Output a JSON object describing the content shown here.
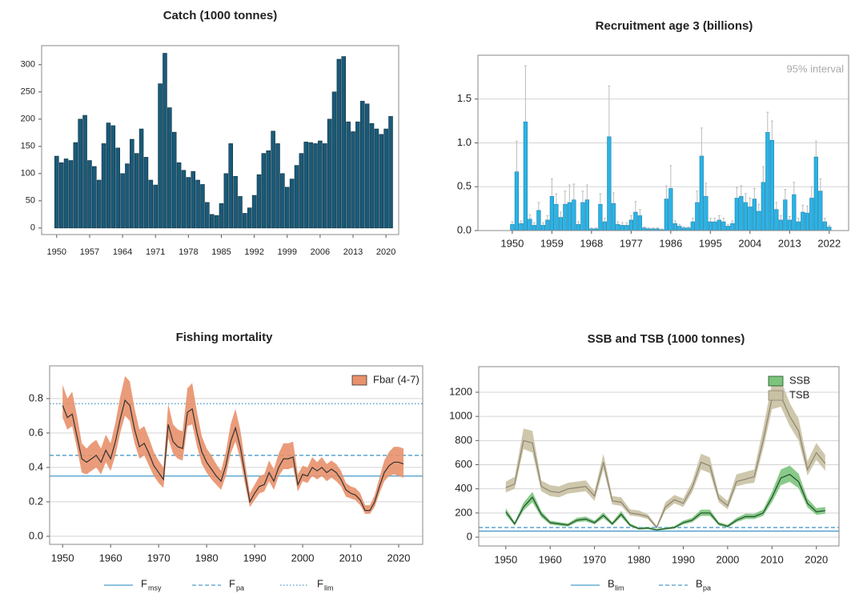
{
  "chart_data": [
    {
      "type": "bar",
      "title": "Catch (1000 tonnes)",
      "color": "#1a5a78",
      "edge_color": "#0d2f40",
      "x": [
        1950,
        1951,
        1952,
        1953,
        1954,
        1955,
        1956,
        1957,
        1958,
        1959,
        1960,
        1961,
        1962,
        1963,
        1964,
        1965,
        1966,
        1967,
        1968,
        1969,
        1970,
        1971,
        1972,
        1973,
        1974,
        1975,
        1976,
        1977,
        1978,
        1979,
        1980,
        1981,
        1982,
        1983,
        1984,
        1985,
        1986,
        1987,
        1988,
        1989,
        1990,
        1991,
        1992,
        1993,
        1994,
        1995,
        1996,
        1997,
        1998,
        1999,
        2000,
        2001,
        2002,
        2003,
        2004,
        2005,
        2006,
        2007,
        2008,
        2009,
        2010,
        2011,
        2012,
        2013,
        2014,
        2015,
        2016,
        2017,
        2018,
        2019,
        2020,
        2021
      ],
      "values": [
        132,
        120,
        127,
        124,
        157,
        200,
        207,
        124,
        113,
        88,
        155,
        193,
        188,
        147,
        100,
        118,
        163,
        137,
        182,
        130,
        88,
        79,
        265,
        321,
        221,
        176,
        120,
        106,
        93,
        104,
        88,
        80,
        47,
        25,
        23,
        45,
        100,
        155,
        95,
        58,
        27,
        37,
        60,
        98,
        137,
        142,
        178,
        155,
        100,
        75,
        90,
        115,
        137,
        158,
        157,
        155,
        160,
        155,
        200,
        250,
        310,
        315,
        195,
        177,
        195,
        233,
        228,
        192,
        182,
        172,
        182,
        205
      ],
      "xlim": [
        1946.8,
        2022.7
      ],
      "xticks": [
        1950,
        1957,
        1964,
        1971,
        1978,
        1985,
        1992,
        1999,
        2006,
        2013,
        2020
      ],
      "ylim": [
        -12,
        335
      ],
      "yticks": [
        0,
        50,
        100,
        150,
        200,
        250,
        300
      ],
      "grid": false
    },
    {
      "type": "bar",
      "title": "Recruitment age 3 (billions)",
      "annotation": "95% interval",
      "color": "#2bb3e6",
      "edge_color": "#1a7fa8",
      "error_color": "#bbbbbb",
      "x": [
        1950,
        1951,
        1952,
        1953,
        1954,
        1955,
        1956,
        1957,
        1958,
        1959,
        1960,
        1961,
        1962,
        1963,
        1964,
        1965,
        1966,
        1967,
        1968,
        1969,
        1970,
        1971,
        1972,
        1973,
        1974,
        1975,
        1976,
        1977,
        1978,
        1979,
        1980,
        1981,
        1982,
        1983,
        1984,
        1985,
        1986,
        1987,
        1988,
        1989,
        1990,
        1991,
        1992,
        1993,
        1994,
        1995,
        1996,
        1997,
        1998,
        1999,
        2000,
        2001,
        2002,
        2003,
        2004,
        2005,
        2006,
        2007,
        2008,
        2009,
        2010,
        2011,
        2012,
        2013,
        2014,
        2015,
        2016,
        2017,
        2018,
        2019,
        2020,
        2021,
        2022
      ],
      "values": [
        0.07,
        0.67,
        0.08,
        1.24,
        0.13,
        0.06,
        0.23,
        0.06,
        0.12,
        0.39,
        0.3,
        0.15,
        0.3,
        0.32,
        0.35,
        0.07,
        0.32,
        0.35,
        0.02,
        0.02,
        0.3,
        0.1,
        1.07,
        0.31,
        0.07,
        0.06,
        0.06,
        0.12,
        0.21,
        0.17,
        0.03,
        0.02,
        0.02,
        0.02,
        0.01,
        0.36,
        0.48,
        0.08,
        0.05,
        0.03,
        0.03,
        0.1,
        0.32,
        0.85,
        0.39,
        0.1,
        0.1,
        0.12,
        0.1,
        0.05,
        0.08,
        0.37,
        0.39,
        0.32,
        0.27,
        0.36,
        0.22,
        0.55,
        1.12,
        1.03,
        0.24,
        0.12,
        0.35,
        0.12,
        0.41,
        0.1,
        0.21,
        0.2,
        0.37,
        0.84,
        0.45,
        0.1,
        0.04
      ],
      "errors": [
        0.03,
        0.35,
        0.03,
        0.64,
        0.05,
        0.03,
        0.09,
        0.03,
        0.05,
        0.2,
        0.12,
        0.06,
        0.15,
        0.2,
        0.18,
        0.03,
        0.13,
        0.17,
        0.01,
        0.01,
        0.12,
        0.04,
        0.58,
        0.12,
        0.03,
        0.03,
        0.03,
        0.05,
        0.12,
        0.07,
        0.01,
        0.01,
        0.01,
        0.01,
        0.01,
        0.15,
        0.26,
        0.03,
        0.02,
        0.01,
        0.01,
        0.04,
        0.13,
        0.32,
        0.15,
        0.04,
        0.04,
        0.05,
        0.04,
        0.02,
        0.03,
        0.12,
        0.12,
        0.1,
        0.1,
        0.12,
        0.08,
        0.18,
        0.23,
        0.22,
        0.08,
        0.05,
        0.12,
        0.04,
        0.14,
        0.04,
        0.08,
        0.08,
        0.13,
        0.18,
        0.14,
        0.04,
        0.02
      ],
      "xlim": [
        1942.2,
        2026.4
      ],
      "xticks": [
        1950,
        1959,
        1968,
        1977,
        1986,
        1995,
        2004,
        2013,
        2022
      ],
      "ylim": [
        0,
        2.0
      ],
      "yticks": [
        {
          "value": 0,
          "label": "0.0"
        },
        {
          "value": 0.5,
          "label": "0.5"
        },
        {
          "value": 1,
          "label": "1.0"
        },
        {
          "value": 1.5,
          "label": "1.5"
        }
      ],
      "grid": true
    },
    {
      "type": "line",
      "title": "Fishing mortality",
      "legend": "upper-right",
      "x": [
        1950,
        1951,
        1952,
        1953,
        1954,
        1955,
        1956,
        1957,
        1958,
        1959,
        1960,
        1961,
        1962,
        1963,
        1964,
        1965,
        1966,
        1967,
        1968,
        1969,
        1970,
        1971,
        1972,
        1973,
        1974,
        1975,
        1976,
        1977,
        1978,
        1979,
        1980,
        1981,
        1982,
        1983,
        1984,
        1985,
        1986,
        1987,
        1988,
        1989,
        1990,
        1991,
        1992,
        1993,
        1994,
        1995,
        1996,
        1997,
        1998,
        1999,
        2000,
        2001,
        2002,
        2003,
        2004,
        2005,
        2006,
        2007,
        2008,
        2009,
        2010,
        2011,
        2012,
        2013,
        2014,
        2015,
        2016,
        2017,
        2018,
        2019,
        2020,
        2021
      ],
      "series": [
        {
          "name": "Fbar (4-7)",
          "color": "#e8916b",
          "line_color": "#333333",
          "values": [
            0.76,
            0.69,
            0.71,
            0.58,
            0.45,
            0.43,
            0.45,
            0.47,
            0.43,
            0.5,
            0.45,
            0.55,
            0.68,
            0.79,
            0.76,
            0.62,
            0.52,
            0.54,
            0.48,
            0.41,
            0.37,
            0.33,
            0.65,
            0.55,
            0.52,
            0.51,
            0.72,
            0.74,
            0.6,
            0.49,
            0.43,
            0.39,
            0.35,
            0.32,
            0.41,
            0.55,
            0.63,
            0.52,
            0.36,
            0.2,
            0.25,
            0.29,
            0.3,
            0.37,
            0.32,
            0.4,
            0.45,
            0.45,
            0.46,
            0.3,
            0.36,
            0.35,
            0.4,
            0.38,
            0.4,
            0.37,
            0.39,
            0.37,
            0.33,
            0.27,
            0.25,
            0.24,
            0.21,
            0.15,
            0.15,
            0.2,
            0.29,
            0.37,
            0.41,
            0.43,
            0.43,
            0.42
          ],
          "low": [
            0.69,
            0.62,
            0.64,
            0.51,
            0.37,
            0.36,
            0.38,
            0.4,
            0.36,
            0.43,
            0.38,
            0.47,
            0.6,
            0.7,
            0.67,
            0.54,
            0.45,
            0.47,
            0.41,
            0.35,
            0.31,
            0.28,
            0.57,
            0.48,
            0.45,
            0.44,
            0.64,
            0.65,
            0.52,
            0.42,
            0.37,
            0.33,
            0.3,
            0.27,
            0.35,
            0.48,
            0.55,
            0.45,
            0.3,
            0.17,
            0.21,
            0.25,
            0.26,
            0.32,
            0.27,
            0.35,
            0.39,
            0.39,
            0.4,
            0.26,
            0.32,
            0.31,
            0.35,
            0.33,
            0.35,
            0.32,
            0.34,
            0.32,
            0.29,
            0.23,
            0.22,
            0.21,
            0.18,
            0.13,
            0.13,
            0.17,
            0.25,
            0.32,
            0.35,
            0.36,
            0.35,
            0.34
          ],
          "high": [
            0.88,
            0.8,
            0.84,
            0.7,
            0.54,
            0.51,
            0.54,
            0.56,
            0.51,
            0.59,
            0.54,
            0.66,
            0.81,
            0.93,
            0.9,
            0.74,
            0.62,
            0.64,
            0.57,
            0.49,
            0.44,
            0.4,
            0.77,
            0.65,
            0.62,
            0.61,
            0.86,
            0.89,
            0.72,
            0.58,
            0.51,
            0.47,
            0.42,
            0.38,
            0.49,
            0.65,
            0.74,
            0.62,
            0.43,
            0.25,
            0.3,
            0.35,
            0.36,
            0.44,
            0.39,
            0.48,
            0.54,
            0.54,
            0.55,
            0.36,
            0.41,
            0.4,
            0.46,
            0.43,
            0.46,
            0.42,
            0.44,
            0.42,
            0.38,
            0.31,
            0.29,
            0.28,
            0.25,
            0.18,
            0.18,
            0.24,
            0.34,
            0.44,
            0.49,
            0.52,
            0.52,
            0.51
          ]
        }
      ],
      "reference_lines": [
        {
          "name": "F",
          "subscript": "msy",
          "value": 0.35,
          "style": "solid",
          "color": "#4a9ccc"
        },
        {
          "name": "F",
          "subscript": "pa",
          "value": 0.47,
          "style": "dashed",
          "color": "#4a9ccc"
        },
        {
          "name": "F",
          "subscript": "lim",
          "value": 0.77,
          "style": "dotted",
          "color": "#4a9ccc"
        }
      ],
      "xlim": [
        1947.3,
        2025
      ],
      "xticks": [
        1950,
        1960,
        1970,
        1980,
        1990,
        2000,
        2010,
        2020
      ],
      "ylim": [
        -0.047,
        0.99
      ],
      "yticks": [
        {
          "value": 0,
          "label": "0.0"
        },
        {
          "value": 0.2,
          "label": "0.2"
        },
        {
          "value": 0.4,
          "label": "0.4"
        },
        {
          "value": 0.6,
          "label": "0.6"
        },
        {
          "value": 0.8,
          "label": "0.8"
        }
      ],
      "grid": true
    },
    {
      "type": "line",
      "title": "SSB and TSB (1000 tonnes)",
      "legend": "upper-right",
      "x": [
        1950,
        1952,
        1954,
        1956,
        1958,
        1960,
        1962,
        1964,
        1966,
        1968,
        1970,
        1972,
        1974,
        1976,
        1978,
        1980,
        1982,
        1984,
        1986,
        1988,
        1990,
        1992,
        1994,
        1996,
        1998,
        2000,
        2002,
        2004,
        2006,
        2008,
        2010,
        2012,
        2014,
        2016,
        2018,
        2020,
        2022
      ],
      "series": [
        {
          "name": "SSB",
          "color": "#7cc47c",
          "line_color": "#1f4f2a",
          "values": [
            210,
            110,
            250,
            330,
            190,
            120,
            110,
            100,
            140,
            150,
            120,
            180,
            110,
            190,
            100,
            70,
            75,
            60,
            70,
            80,
            120,
            140,
            200,
            200,
            110,
            90,
            140,
            170,
            170,
            200,
            330,
            490,
            520,
            460,
            280,
            210,
            220
          ],
          "low": [
            185,
            95,
            220,
            290,
            165,
            105,
            95,
            88,
            123,
            132,
            105,
            158,
            97,
            167,
            88,
            62,
            66,
            53,
            62,
            70,
            105,
            123,
            176,
            176,
            97,
            79,
            123,
            150,
            150,
            176,
            290,
            430,
            458,
            405,
            246,
            185,
            194
          ],
          "high": [
            240,
            125,
            285,
            375,
            215,
            137,
            125,
            114,
            160,
            171,
            137,
            205,
            125,
            217,
            114,
            80,
            86,
            68,
            80,
            91,
            137,
            160,
            228,
            228,
            125,
            103,
            160,
            194,
            194,
            228,
            376,
            560,
            593,
            525,
            320,
            240,
            250
          ]
        },
        {
          "name": "TSB",
          "color": "#c9c1a3",
          "line_color": "#8c8470",
          "values": [
            410,
            440,
            800,
            780,
            420,
            380,
            370,
            400,
            410,
            420,
            340,
            620,
            300,
            290,
            200,
            190,
            170,
            80,
            250,
            310,
            280,
            410,
            620,
            590,
            320,
            260,
            460,
            480,
            500,
            800,
            1150,
            1170,
            1000,
            880,
            560,
            700,
            610
          ],
          "low": [
            370,
            400,
            730,
            700,
            380,
            340,
            330,
            360,
            370,
            380,
            300,
            560,
            270,
            260,
            180,
            170,
            150,
            70,
            220,
            280,
            250,
            370,
            560,
            530,
            290,
            230,
            420,
            440,
            450,
            730,
            1060,
            1080,
            920,
            800,
            510,
            640,
            550
          ],
          "high": [
            460,
            500,
            900,
            880,
            470,
            430,
            420,
            450,
            460,
            470,
            380,
            690,
            340,
            330,
            230,
            220,
            190,
            95,
            290,
            350,
            320,
            460,
            690,
            660,
            360,
            300,
            520,
            540,
            560,
            900,
            1280,
            1300,
            1110,
            980,
            630,
            780,
            680
          ]
        }
      ],
      "reference_lines": [
        {
          "name": "B",
          "subscript": "lim",
          "value": 50,
          "style": "solid",
          "color": "#4a9ccc"
        },
        {
          "name": "B",
          "subscript": "pa",
          "value": 80,
          "style": "dashed",
          "color": "#4a9ccc"
        }
      ],
      "xlim": [
        1943.9,
        2025.1
      ],
      "xticks": [
        1950,
        1960,
        1970,
        1980,
        1990,
        2000,
        2010,
        2020
      ],
      "ylim": [
        -73,
        1412
      ],
      "yticks": [
        0,
        200,
        400,
        600,
        800,
        1000,
        1200
      ],
      "grid": true
    }
  ]
}
